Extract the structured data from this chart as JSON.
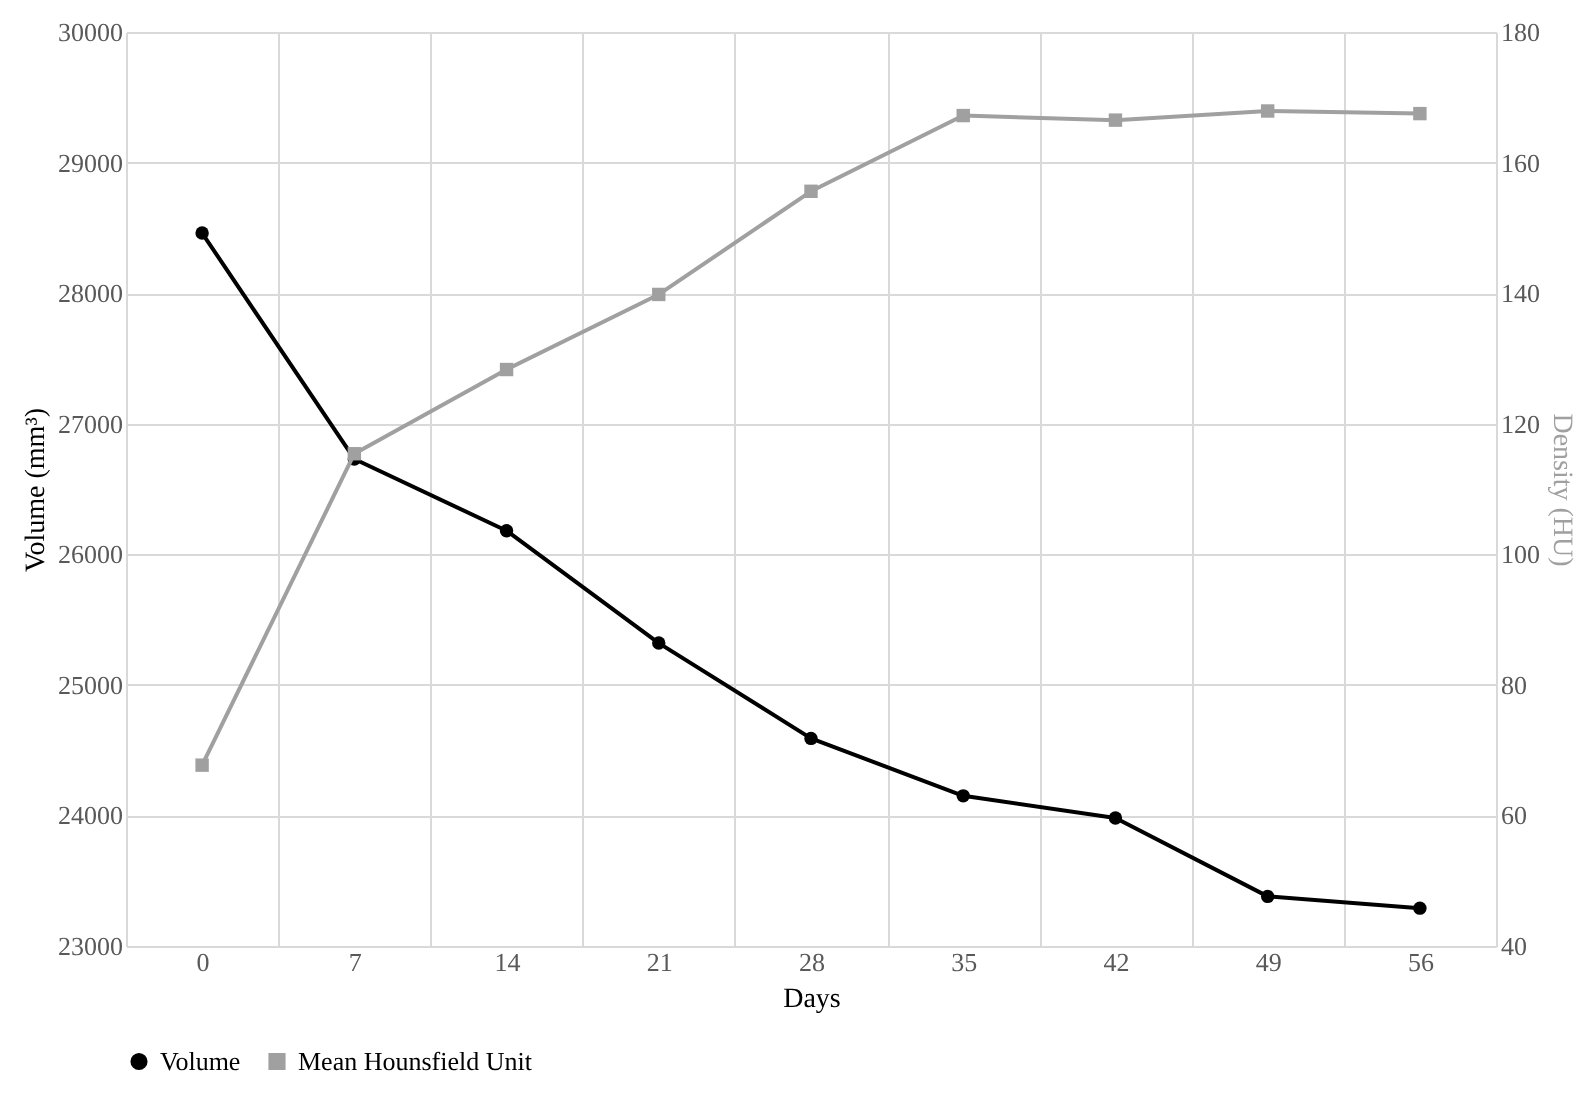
{
  "chart_data": {
    "type": "line",
    "xlabel": "Days",
    "ylabel": "Volume (mm³)",
    "y2label": "Density (HU)",
    "categories": [
      "0",
      "7",
      "14",
      "21",
      "28",
      "35",
      "42",
      "49",
      "56"
    ],
    "series": [
      {
        "name": "Volume",
        "color": "#000000",
        "marker": "circle",
        "axis": "y",
        "values": [
          28460,
          26730,
          26180,
          25320,
          24590,
          24150,
          23980,
          23380,
          23290
        ]
      },
      {
        "name": "Mean Hounsfield Unit",
        "color": "#a0a0a0",
        "marker": "square",
        "axis": "y2",
        "values": [
          67.7,
          115.4,
          128.3,
          139.8,
          155.6,
          167.2,
          166.5,
          167.9,
          167.5
        ]
      }
    ],
    "ylim": [
      23000,
      30000
    ],
    "yticks": [
      23000,
      24000,
      25000,
      26000,
      27000,
      28000,
      29000,
      30000
    ],
    "y2lim": [
      40,
      180
    ],
    "y2ticks": [
      40,
      60,
      80,
      100,
      120,
      140,
      160,
      180
    ],
    "grid": true,
    "legend": "bottom",
    "line_style": "solid"
  }
}
